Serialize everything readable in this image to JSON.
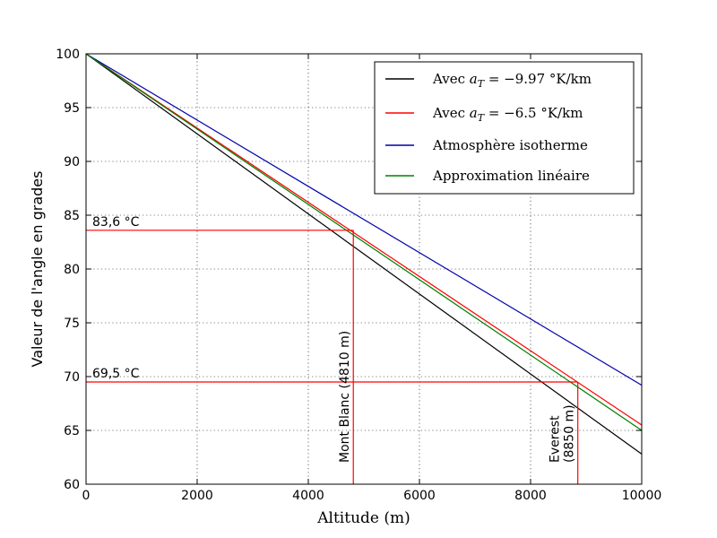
{
  "chart_data": {
    "type": "line",
    "xlabel": "Altitude (m)",
    "ylabel": "Valeur de l'angle en grades",
    "xlim": [
      0,
      10000
    ],
    "ylim": [
      60,
      100
    ],
    "xticks": [
      "0",
      "2000",
      "4000",
      "6000",
      "8000",
      "10000"
    ],
    "yticks": [
      "60",
      "65",
      "70",
      "75",
      "80",
      "85",
      "90",
      "95",
      "100"
    ],
    "grid": true,
    "legend_position": "top-right",
    "series": [
      {
        "name": "Avec a_T = −9.97 °K/km",
        "label_prefix": "Avec ",
        "label_var": "a",
        "label_sub": "T",
        "label_rest": " = −9.97 °K/km",
        "color": "#000000",
        "x": [
          0,
          10000
        ],
        "y": [
          100,
          62.8
        ]
      },
      {
        "name": "Avec a_T = −6.5 °K/km",
        "label_prefix": "Avec ",
        "label_var": "a",
        "label_sub": "T",
        "label_rest": " = −6.5 °K/km",
        "color": "#ff0000",
        "x": [
          0,
          10000
        ],
        "y": [
          100,
          65.5
        ]
      },
      {
        "name": "Atmosphère isotherme",
        "label_prefix": "Atmosphère isotherme",
        "color": "#0000aa",
        "x": [
          0,
          10000
        ],
        "y": [
          100,
          69.2
        ]
      },
      {
        "name": "Approximation linéaire",
        "label_prefix": "Approximation linéaire",
        "color": "#008000",
        "x": [
          0,
          10000
        ],
        "y": [
          100,
          65.0
        ]
      }
    ],
    "reference_lines": {
      "color": "#ff0000",
      "horizontal": [
        {
          "y": 83.6,
          "x_end": 4810,
          "label": "83,6 °C"
        },
        {
          "y": 69.5,
          "x_end": 8850,
          "label": "69,5 °C"
        }
      ],
      "vertical": [
        {
          "x": 4810,
          "y_end": 83.6,
          "label_lines": [
            "Mont Blanc (4810 m)"
          ]
        },
        {
          "x": 8850,
          "y_end": 69.5,
          "label_lines": [
            "Everest",
            "(8850 m)"
          ]
        }
      ]
    }
  }
}
